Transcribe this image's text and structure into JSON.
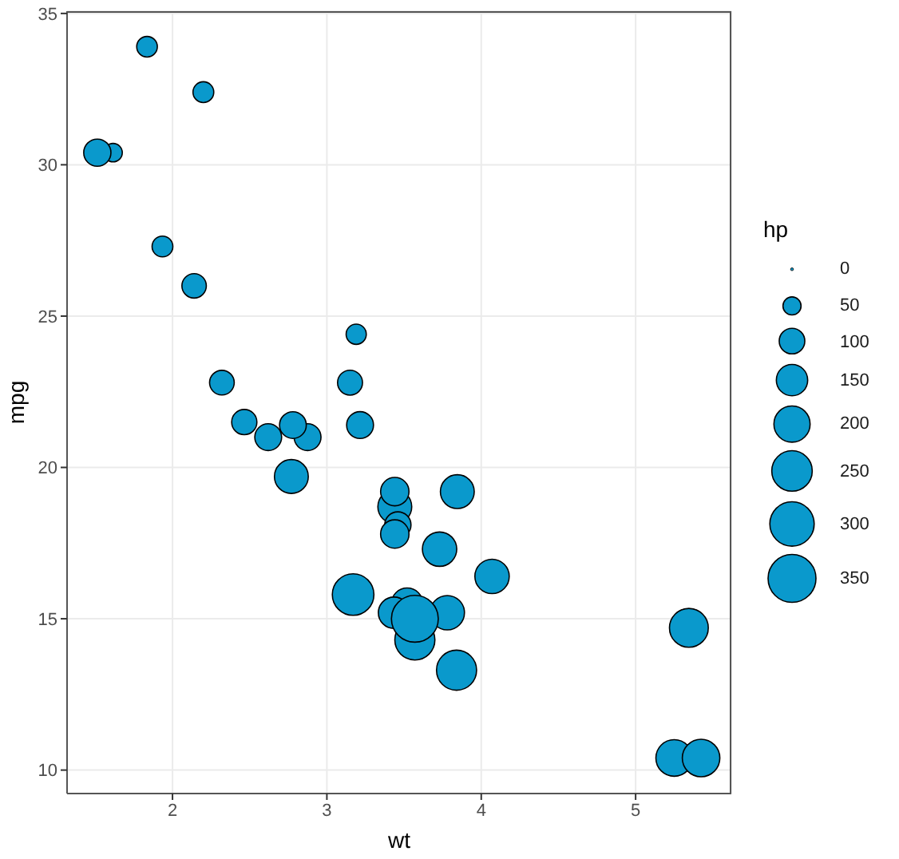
{
  "chart_data": {
    "type": "bubble",
    "xlabel": "wt",
    "ylabel": "mpg",
    "legend_title": "hp",
    "x": [
      2.62,
      2.875,
      2.32,
      3.215,
      3.44,
      3.46,
      3.57,
      3.19,
      3.15,
      3.44,
      3.44,
      4.07,
      3.73,
      3.78,
      5.25,
      5.424,
      5.345,
      2.2,
      1.615,
      1.835,
      2.465,
      3.52,
      3.435,
      3.84,
      3.845,
      1.935,
      2.14,
      1.513,
      3.17,
      2.77,
      3.57,
      2.78
    ],
    "values": [
      21.0,
      21.0,
      22.8,
      21.4,
      18.7,
      18.1,
      14.3,
      24.4,
      22.8,
      19.2,
      17.8,
      16.4,
      17.3,
      15.2,
      10.4,
      10.4,
      14.7,
      32.4,
      30.4,
      33.9,
      21.5,
      15.5,
      15.2,
      13.3,
      19.2,
      27.3,
      26.0,
      30.4,
      15.8,
      19.7,
      15.0,
      21.4
    ],
    "sizes": [
      110,
      110,
      93,
      110,
      175,
      105,
      245,
      62,
      95,
      123,
      123,
      180,
      180,
      180,
      205,
      215,
      230,
      66,
      52,
      65,
      97,
      150,
      150,
      245,
      175,
      66,
      91,
      113,
      264,
      175,
      335,
      109
    ],
    "size_legend": [
      0,
      50,
      100,
      150,
      200,
      250,
      300,
      350
    ],
    "color": "#0a99cc",
    "marker": "circle",
    "xlim": [
      1.317,
      5.62
    ],
    "ylim": [
      9.225,
      35.075
    ],
    "xticks": [
      2,
      3,
      4,
      5
    ],
    "yticks": [
      10,
      15,
      20,
      25,
      30,
      35
    ],
    "grid": true
  }
}
